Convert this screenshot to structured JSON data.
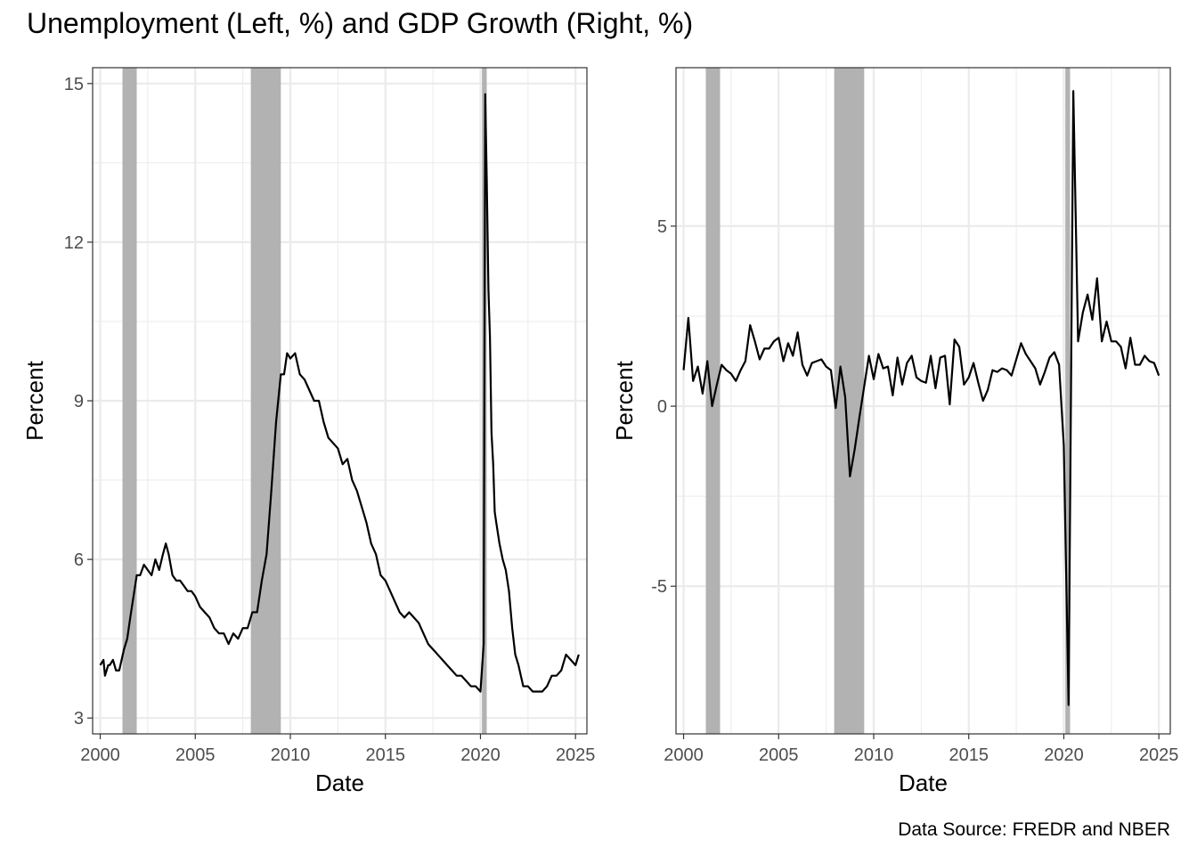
{
  "title": "Unemployment (Left, %) and GDP Growth (Right, %)",
  "caption": "Data Source: FREDR and NBER",
  "colors": {
    "line": "#000000",
    "recession": "#b2b2b2",
    "grid": "#ebebeb",
    "panel_border": "#333333"
  },
  "chart_data": [
    {
      "type": "line",
      "xlabel": "Date",
      "ylabel": "Percent",
      "xlim": [
        1999.6,
        2025.6
      ],
      "ylim": [
        2.7,
        15.3
      ],
      "x_ticks": [
        2000,
        2005,
        2010,
        2015,
        2020,
        2025
      ],
      "y_ticks": [
        3,
        6,
        9,
        12,
        15
      ],
      "grid": true,
      "recessions": [
        [
          2001.17,
          2001.92
        ],
        [
          2007.92,
          2009.5
        ],
        [
          2020.08,
          2020.33
        ]
      ],
      "series": [
        {
          "x": [
            2000.0,
            2000.17,
            2000.25,
            2000.42,
            2000.5,
            2000.67,
            2000.83,
            2001.0,
            2001.25,
            2001.42,
            2001.58,
            2001.75,
            2001.92,
            2002.1,
            2002.3,
            2002.5,
            2002.7,
            2002.9,
            2003.1,
            2003.3,
            2003.45,
            2003.6,
            2003.8,
            2004.0,
            2004.2,
            2004.4,
            2004.6,
            2004.8,
            2005.0,
            2005.25,
            2005.5,
            2005.75,
            2006.0,
            2006.25,
            2006.5,
            2006.75,
            2007.0,
            2007.25,
            2007.5,
            2007.75,
            2008.0,
            2008.25,
            2008.5,
            2008.75,
            2009.0,
            2009.25,
            2009.5,
            2009.67,
            2009.83,
            2010.0,
            2010.25,
            2010.5,
            2010.75,
            2011.0,
            2011.25,
            2011.5,
            2011.75,
            2012.0,
            2012.25,
            2012.5,
            2012.75,
            2013.0,
            2013.25,
            2013.5,
            2013.75,
            2014.0,
            2014.25,
            2014.5,
            2014.75,
            2015.0,
            2015.25,
            2015.5,
            2015.75,
            2016.0,
            2016.25,
            2016.5,
            2016.75,
            2017.0,
            2017.25,
            2017.5,
            2017.75,
            2018.0,
            2018.25,
            2018.5,
            2018.75,
            2019.0,
            2019.25,
            2019.5,
            2019.75,
            2020.0,
            2020.17,
            2020.25,
            2020.33,
            2020.42,
            2020.5,
            2020.58,
            2020.67,
            2020.75,
            2020.83,
            2021.0,
            2021.17,
            2021.33,
            2021.5,
            2021.67,
            2021.83,
            2022.0,
            2022.25,
            2022.5,
            2022.75,
            2023.0,
            2023.25,
            2023.5,
            2023.75,
            2024.0,
            2024.25,
            2024.5,
            2024.75,
            2025.0,
            2025.17
          ],
          "y": [
            4.0,
            4.1,
            3.8,
            4.0,
            4.0,
            4.1,
            3.9,
            3.9,
            4.3,
            4.5,
            4.9,
            5.3,
            5.7,
            5.7,
            5.9,
            5.8,
            5.7,
            6.0,
            5.8,
            6.1,
            6.3,
            6.1,
            5.7,
            5.6,
            5.6,
            5.5,
            5.4,
            5.4,
            5.3,
            5.1,
            5.0,
            4.9,
            4.7,
            4.6,
            4.6,
            4.4,
            4.6,
            4.5,
            4.7,
            4.7,
            5.0,
            5.0,
            5.6,
            6.1,
            7.3,
            8.6,
            9.5,
            9.5,
            9.9,
            9.8,
            9.9,
            9.5,
            9.4,
            9.2,
            9.0,
            9.0,
            8.6,
            8.3,
            8.2,
            8.1,
            7.8,
            7.9,
            7.5,
            7.3,
            7.0,
            6.7,
            6.3,
            6.1,
            5.7,
            5.6,
            5.4,
            5.2,
            5.0,
            4.9,
            5.0,
            4.9,
            4.8,
            4.6,
            4.4,
            4.3,
            4.2,
            4.1,
            4.0,
            3.9,
            3.8,
            3.8,
            3.7,
            3.6,
            3.6,
            3.5,
            4.4,
            14.8,
            13.2,
            11.1,
            10.2,
            8.4,
            7.8,
            6.9,
            6.7,
            6.3,
            6.0,
            5.8,
            5.4,
            4.7,
            4.2,
            4.0,
            3.6,
            3.6,
            3.5,
            3.5,
            3.5,
            3.6,
            3.8,
            3.8,
            3.9,
            4.2,
            4.1,
            4.0,
            4.2
          ]
        }
      ]
    },
    {
      "type": "line",
      "xlabel": "Date",
      "ylabel": "Percent",
      "xlim": [
        1999.6,
        2025.6
      ],
      "ylim": [
        -9.1,
        9.4
      ],
      "x_ticks": [
        2000,
        2005,
        2010,
        2015,
        2020,
        2025
      ],
      "y_ticks": [
        -5,
        0,
        5
      ],
      "y_tick_labels": [
        "-5",
        "0",
        "5"
      ],
      "grid": true,
      "recessions": [
        [
          2001.17,
          2001.92
        ],
        [
          2007.92,
          2009.5
        ],
        [
          2020.08,
          2020.33
        ]
      ],
      "series": [
        {
          "x": [
            2000.0,
            2000.25,
            2000.5,
            2000.75,
            2001.0,
            2001.25,
            2001.5,
            2001.75,
            2002.0,
            2002.25,
            2002.5,
            2002.75,
            2003.0,
            2003.25,
            2003.5,
            2003.75,
            2004.0,
            2004.25,
            2004.5,
            2004.75,
            2005.0,
            2005.25,
            2005.5,
            2005.75,
            2006.0,
            2006.25,
            2006.5,
            2006.75,
            2007.0,
            2007.25,
            2007.5,
            2007.75,
            2008.0,
            2008.25,
            2008.5,
            2008.75,
            2009.0,
            2009.25,
            2009.5,
            2009.75,
            2010.0,
            2010.25,
            2010.5,
            2010.75,
            2011.0,
            2011.25,
            2011.5,
            2011.75,
            2012.0,
            2012.25,
            2012.5,
            2012.75,
            2013.0,
            2013.25,
            2013.5,
            2013.75,
            2014.0,
            2014.25,
            2014.5,
            2014.75,
            2015.0,
            2015.25,
            2015.5,
            2015.75,
            2016.0,
            2016.25,
            2016.5,
            2016.75,
            2017.0,
            2017.25,
            2017.5,
            2017.75,
            2018.0,
            2018.25,
            2018.5,
            2018.75,
            2019.0,
            2019.25,
            2019.5,
            2019.75,
            2020.0,
            2020.25,
            2020.5,
            2020.75,
            2021.0,
            2021.25,
            2021.5,
            2021.75,
            2022.0,
            2022.25,
            2022.5,
            2022.75,
            2023.0,
            2023.25,
            2023.5,
            2023.75,
            2024.0,
            2024.25,
            2024.5,
            2024.75,
            2025.0
          ],
          "y": [
            1.0,
            2.45,
            0.7,
            1.1,
            0.35,
            1.25,
            0.0,
            0.6,
            1.15,
            1.0,
            0.9,
            0.7,
            1.0,
            1.25,
            2.25,
            1.8,
            1.3,
            1.6,
            1.6,
            1.8,
            1.9,
            1.25,
            1.75,
            1.4,
            2.05,
            1.15,
            0.85,
            1.2,
            1.25,
            1.3,
            1.1,
            1.0,
            -0.05,
            1.1,
            0.25,
            -1.95,
            -1.2,
            -0.3,
            0.55,
            1.4,
            0.75,
            1.45,
            1.05,
            1.1,
            0.3,
            1.35,
            0.6,
            1.2,
            1.4,
            0.8,
            0.7,
            0.65,
            1.4,
            0.5,
            1.35,
            1.4,
            0.05,
            1.85,
            1.65,
            0.6,
            0.8,
            1.2,
            0.65,
            0.15,
            0.45,
            1.0,
            0.95,
            1.05,
            1.0,
            0.85,
            1.3,
            1.75,
            1.45,
            1.25,
            1.05,
            0.6,
            0.95,
            1.35,
            1.5,
            1.15,
            -1.1,
            -8.3,
            8.75,
            1.8,
            2.6,
            3.1,
            2.4,
            3.55,
            1.8,
            2.35,
            1.8,
            1.8,
            1.65,
            1.05,
            1.9,
            1.15,
            1.15,
            1.4,
            1.25,
            1.2,
            0.85
          ]
        }
      ]
    }
  ]
}
